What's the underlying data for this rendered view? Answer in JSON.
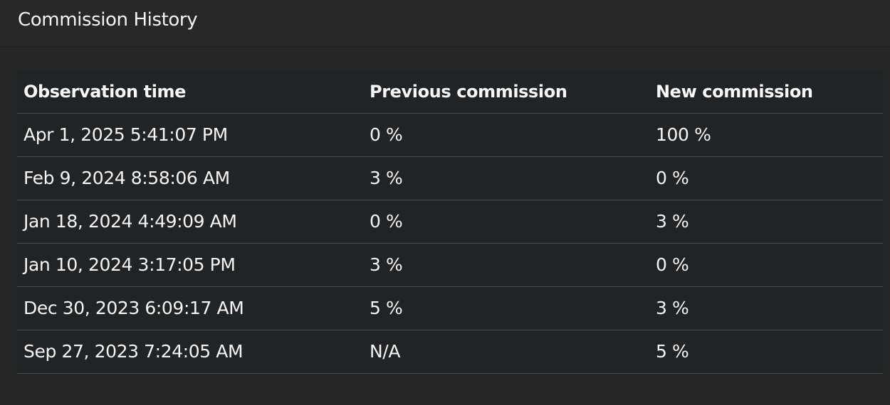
{
  "panel": {
    "title": "Commission History"
  },
  "table": {
    "columns": [
      "Observation time",
      "Previous commission",
      "New commission"
    ],
    "rows": [
      [
        "Apr 1, 2025 5:41:07 PM",
        "0 %",
        "100 %"
      ],
      [
        "Feb 9, 2024 8:58:06 AM",
        "3 %",
        "0 %"
      ],
      [
        "Jan 18, 2024 4:49:09 AM",
        "0 %",
        "3 %"
      ],
      [
        "Jan 10, 2024 3:17:05 PM",
        "3 %",
        "0 %"
      ],
      [
        "Dec 30, 2023 6:09:17 AM",
        "5 %",
        "3 %"
      ],
      [
        "Sep 27, 2023 7:24:05 AM",
        "N/A",
        "5 %"
      ]
    ]
  }
}
